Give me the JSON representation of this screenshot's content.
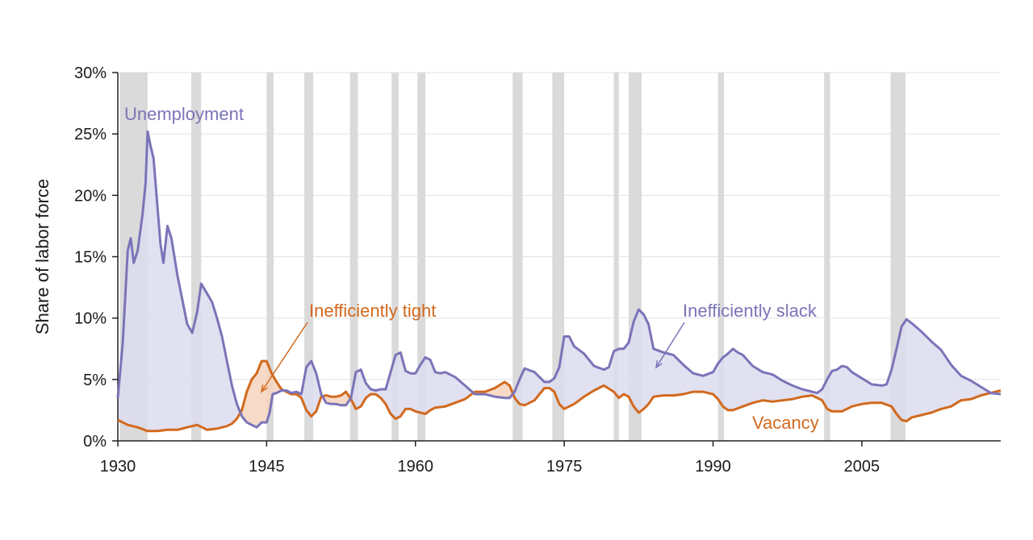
{
  "chart_data": {
    "type": "line",
    "title": "",
    "xlabel": "",
    "ylabel": "Share of labor force",
    "xlim": [
      1930,
      2019
    ],
    "ylim": [
      0,
      30
    ],
    "x_ticks": [
      1930,
      1945,
      1960,
      1975,
      1990,
      2005
    ],
    "y_ticks": [
      0,
      5,
      10,
      15,
      20,
      25,
      30
    ],
    "y_tick_labels": [
      "0%",
      "5%",
      "10%",
      "15%",
      "20%",
      "25%",
      "30%"
    ],
    "grid": true,
    "colors": {
      "unemployment": "#7b74b8",
      "vacancy": "#d2691e",
      "slack_fill": "#dcdcee",
      "tight_fill": "#f6d3bd",
      "recession": "#dadada"
    },
    "recessions": [
      [
        1930.2,
        1933.0
      ],
      [
        1937.4,
        1938.4
      ],
      [
        1945.0,
        1945.7
      ],
      [
        1948.8,
        1949.7
      ],
      [
        1953.4,
        1954.2
      ],
      [
        1957.6,
        1958.3
      ],
      [
        1960.2,
        1961.0
      ],
      [
        1969.8,
        1970.8
      ],
      [
        1973.8,
        1975.0
      ],
      [
        1980.0,
        1980.5
      ],
      [
        1981.5,
        1982.8
      ],
      [
        1990.5,
        1991.1
      ],
      [
        2001.2,
        2001.8
      ],
      [
        2007.9,
        2009.4
      ]
    ],
    "series": [
      {
        "name": "Unemployment",
        "x": [
          1930.0,
          1930.5,
          1931.0,
          1931.3,
          1931.6,
          1932.0,
          1932.5,
          1932.8,
          1933.0,
          1933.3,
          1933.6,
          1934.0,
          1934.3,
          1934.6,
          1935.0,
          1935.4,
          1936.0,
          1936.5,
          1937.0,
          1937.5,
          1938.0,
          1938.4,
          1939.0,
          1939.5,
          1940.0,
          1940.5,
          1941.0,
          1941.5,
          1942.0,
          1942.5,
          1943.0,
          1943.5,
          1944.0,
          1944.5,
          1945.0,
          1945.3,
          1945.6,
          1946.0,
          1946.5,
          1947.0,
          1947.5,
          1948.0,
          1948.5,
          1949.0,
          1949.5,
          1950.0,
          1950.5,
          1951.0,
          1951.5,
          1952.0,
          1952.5,
          1953.0,
          1953.5,
          1954.0,
          1954.5,
          1955.0,
          1955.5,
          1956.0,
          1956.5,
          1957.0,
          1957.5,
          1958.0,
          1958.5,
          1959.0,
          1959.5,
          1960.0,
          1960.5,
          1961.0,
          1961.5,
          1962.0,
          1962.5,
          1963.0,
          1964.0,
          1965.0,
          1966.0,
          1967.0,
          1968.0,
          1969.0,
          1969.5,
          1970.0,
          1970.5,
          1971.0,
          1972.0,
          1973.0,
          1973.5,
          1974.0,
          1974.5,
          1975.0,
          1975.5,
          1976.0,
          1977.0,
          1978.0,
          1979.0,
          1979.5,
          1980.0,
          1980.5,
          1981.0,
          1981.5,
          1982.0,
          1982.5,
          1983.0,
          1983.5,
          1984.0,
          1985.0,
          1986.0,
          1987.0,
          1988.0,
          1989.0,
          1990.0,
          1990.5,
          1991.0,
          1991.5,
          1992.0,
          1992.5,
          1993.0,
          1994.0,
          1995.0,
          1996.0,
          1997.0,
          1998.0,
          1999.0,
          2000.0,
          2000.5,
          2001.0,
          2001.5,
          2002.0,
          2002.5,
          2003.0,
          2003.5,
          2004.0,
          2005.0,
          2006.0,
          2007.0,
          2007.5,
          2008.0,
          2008.5,
          2009.0,
          2009.5,
          2010.0,
          2011.0,
          2012.0,
          2013.0,
          2014.0,
          2015.0,
          2016.0,
          2017.0,
          2018.0,
          2019.0
        ],
        "y": [
          3.5,
          8.0,
          15.5,
          16.5,
          14.5,
          15.5,
          18.5,
          21.0,
          25.2,
          24.0,
          23.0,
          19.0,
          16.0,
          14.5,
          17.5,
          16.5,
          13.5,
          11.5,
          9.5,
          8.8,
          10.5,
          12.8,
          12.0,
          11.3,
          10.0,
          8.5,
          6.5,
          4.5,
          3.0,
          2.0,
          1.5,
          1.3,
          1.1,
          1.5,
          1.5,
          2.3,
          3.8,
          3.9,
          4.1,
          4.1,
          3.9,
          4.0,
          3.8,
          6.0,
          6.5,
          5.5,
          3.8,
          3.1,
          3.0,
          3.0,
          2.9,
          2.9,
          3.5,
          5.6,
          5.8,
          4.7,
          4.2,
          4.1,
          4.2,
          4.2,
          5.6,
          7.0,
          7.2,
          5.7,
          5.5,
          5.5,
          6.2,
          6.8,
          6.6,
          5.6,
          5.5,
          5.6,
          5.2,
          4.5,
          3.8,
          3.8,
          3.6,
          3.5,
          3.5,
          4.0,
          5.0,
          5.9,
          5.6,
          4.8,
          4.8,
          5.1,
          6.0,
          8.5,
          8.5,
          7.7,
          7.1,
          6.1,
          5.8,
          6.0,
          7.3,
          7.5,
          7.5,
          8.0,
          9.7,
          10.7,
          10.3,
          9.5,
          7.5,
          7.2,
          7.0,
          6.2,
          5.5,
          5.3,
          5.6,
          6.3,
          6.8,
          7.1,
          7.5,
          7.2,
          7.0,
          6.1,
          5.6,
          5.4,
          4.9,
          4.5,
          4.2,
          4.0,
          3.9,
          4.2,
          5.0,
          5.7,
          5.8,
          6.1,
          6.0,
          5.6,
          5.1,
          4.6,
          4.5,
          4.6,
          5.8,
          7.5,
          9.3,
          9.9,
          9.6,
          8.9,
          8.1,
          7.4,
          6.2,
          5.3,
          4.9,
          4.4,
          3.9,
          3.8
        ]
      },
      {
        "name": "Vacancy",
        "x": [
          1930.0,
          1931.0,
          1932.0,
          1933.0,
          1934.0,
          1935.0,
          1936.0,
          1937.0,
          1938.0,
          1938.5,
          1939.0,
          1940.0,
          1941.0,
          1941.5,
          1942.0,
          1942.5,
          1943.0,
          1943.5,
          1944.0,
          1944.5,
          1945.0,
          1945.5,
          1946.0,
          1946.5,
          1947.0,
          1947.5,
          1948.0,
          1948.5,
          1949.0,
          1949.5,
          1950.0,
          1950.5,
          1951.0,
          1951.5,
          1952.0,
          1952.5,
          1953.0,
          1953.5,
          1954.0,
          1954.5,
          1955.0,
          1955.5,
          1956.0,
          1956.5,
          1957.0,
          1957.5,
          1958.0,
          1958.5,
          1959.0,
          1959.5,
          1960.0,
          1960.5,
          1961.0,
          1961.5,
          1962.0,
          1963.0,
          1964.0,
          1965.0,
          1966.0,
          1967.0,
          1968.0,
          1969.0,
          1969.5,
          1970.0,
          1970.5,
          1971.0,
          1972.0,
          1973.0,
          1973.5,
          1974.0,
          1974.5,
          1975.0,
          1975.5,
          1976.0,
          1977.0,
          1978.0,
          1979.0,
          1980.0,
          1980.5,
          1981.0,
          1981.5,
          1982.0,
          1982.5,
          1983.0,
          1983.5,
          1984.0,
          1985.0,
          1986.0,
          1987.0,
          1988.0,
          1989.0,
          1990.0,
          1990.5,
          1991.0,
          1991.5,
          1992.0,
          1993.0,
          1994.0,
          1995.0,
          1996.0,
          1997.0,
          1998.0,
          1999.0,
          2000.0,
          2001.0,
          2001.5,
          2002.0,
          2003.0,
          2004.0,
          2005.0,
          2006.0,
          2007.0,
          2008.0,
          2008.5,
          2009.0,
          2009.5,
          2010.0,
          2011.0,
          2012.0,
          2013.0,
          2014.0,
          2015.0,
          2016.0,
          2017.0,
          2018.0,
          2019.0
        ],
        "y": [
          1.7,
          1.3,
          1.1,
          0.8,
          0.8,
          0.9,
          0.9,
          1.1,
          1.3,
          1.1,
          0.9,
          1.0,
          1.2,
          1.4,
          1.8,
          2.5,
          4.0,
          5.0,
          5.5,
          6.5,
          6.5,
          5.5,
          4.8,
          4.2,
          4.0,
          3.8,
          3.8,
          3.5,
          2.5,
          2.0,
          2.4,
          3.6,
          3.7,
          3.6,
          3.6,
          3.7,
          4.0,
          3.4,
          2.6,
          2.8,
          3.5,
          3.8,
          3.8,
          3.5,
          3.0,
          2.2,
          1.8,
          2.0,
          2.6,
          2.6,
          2.4,
          2.3,
          2.2,
          2.5,
          2.7,
          2.8,
          3.1,
          3.4,
          4.0,
          4.0,
          4.3,
          4.8,
          4.5,
          3.5,
          3.0,
          2.9,
          3.3,
          4.3,
          4.3,
          4.0,
          3.0,
          2.6,
          2.8,
          3.0,
          3.6,
          4.1,
          4.5,
          4.0,
          3.5,
          3.8,
          3.6,
          2.8,
          2.3,
          2.6,
          3.0,
          3.6,
          3.7,
          3.7,
          3.8,
          4.0,
          4.0,
          3.8,
          3.4,
          2.8,
          2.5,
          2.5,
          2.8,
          3.1,
          3.3,
          3.2,
          3.3,
          3.4,
          3.6,
          3.7,
          3.3,
          2.6,
          2.4,
          2.4,
          2.8,
          3.0,
          3.1,
          3.1,
          2.8,
          2.2,
          1.7,
          1.6,
          1.9,
          2.1,
          2.3,
          2.6,
          2.8,
          3.3,
          3.4,
          3.7,
          3.9,
          4.1
        ]
      }
    ],
    "annotations": [
      {
        "text": "Unemployment",
        "role": "series-label",
        "series": "Unemployment"
      },
      {
        "text": "Inefficiently tight",
        "role": "region-label",
        "series": "Vacancy"
      },
      {
        "text": "Inefficiently slack",
        "role": "region-label",
        "series": "Unemployment"
      },
      {
        "text": "Vacancy",
        "role": "series-label",
        "series": "Vacancy"
      }
    ]
  }
}
